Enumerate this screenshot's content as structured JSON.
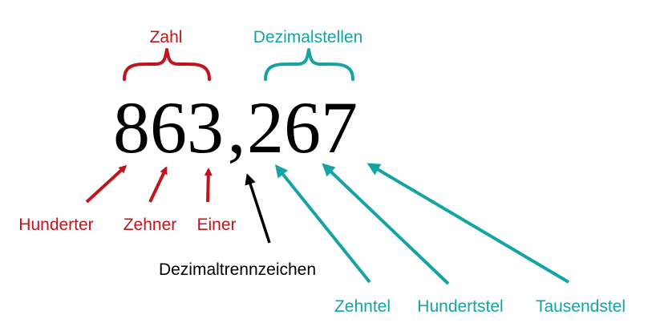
{
  "number": {
    "integer_part": "863",
    "separator": ",",
    "decimal_part": "267"
  },
  "groups": {
    "integer": {
      "label": "Zahl",
      "color": "#c0151c"
    },
    "decimal": {
      "label": "Dezimalstellen",
      "color": "#16a3a3"
    }
  },
  "separator_label": {
    "label": "Dezimaltrennzeichen",
    "color": "#000000"
  },
  "place_values": {
    "integer": [
      "Hunderter",
      "Zehner",
      "Einer"
    ],
    "decimal": [
      "Zehntel",
      "Hundertstel",
      "Tausendstel"
    ]
  }
}
